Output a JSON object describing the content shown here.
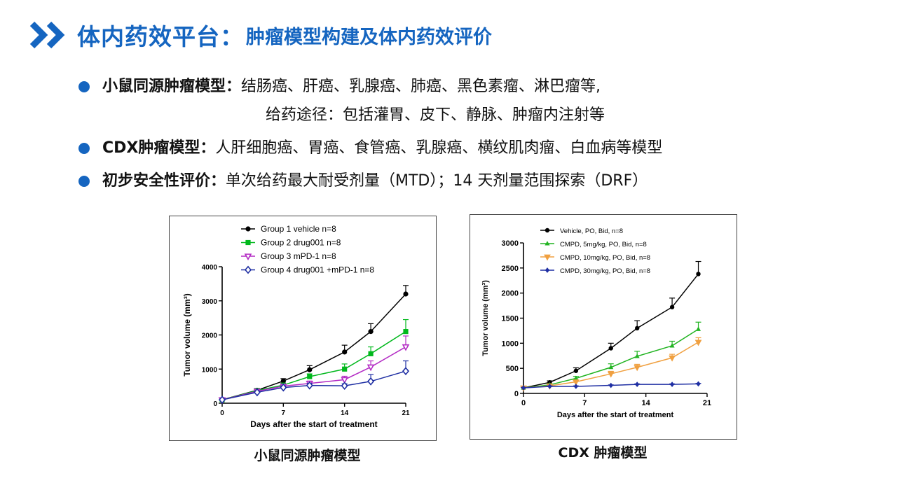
{
  "header": {
    "title_main": "体内药效平台",
    "title_sep": "：",
    "title_sub": "肿瘤模型构建及体内药效评价",
    "icon": "double-chevron-right-icon",
    "accent": "#1565c0"
  },
  "bullets": [
    {
      "label": "小鼠同源肿瘤模型：",
      "text": "结肠癌、肝癌、乳腺癌、肺癌、黑色素瘤、淋巴瘤等,",
      "continuation": "给药途径：包括灌胃、皮下、静脉、肿瘤内注射等"
    },
    {
      "label": "CDX肿瘤模型：",
      "text": "人肝细胞癌、胃癌、食管癌、乳腺癌、横纹肌肉瘤、白血病等模型"
    },
    {
      "label": "初步安全性评价：",
      "text": "单次给药最大耐受剂量（MTD）；14 天剂量范围探索（DRF）"
    }
  ],
  "captions": {
    "chart1": "小鼠同源肿瘤模型",
    "chart2": "CDX 肿瘤模型"
  },
  "chart_data": [
    {
      "type": "line",
      "title": "",
      "xlabel": "Days after the start of treatment",
      "ylabel": "Tumor volume (mm³)",
      "xlim": [
        0,
        21
      ],
      "ylim": [
        0,
        4000
      ],
      "xticks": [
        0,
        7,
        14,
        21
      ],
      "yticks": [
        0,
        1000,
        2000,
        3000,
        4000
      ],
      "legend_position": "top",
      "series": [
        {
          "name": "Group 1 vehicle n=8",
          "color": "#000000",
          "marker": "circle",
          "x": [
            0,
            4,
            7,
            10,
            14,
            17,
            21
          ],
          "y": [
            100,
            380,
            650,
            980,
            1500,
            2100,
            3200
          ],
          "err": [
            20,
            50,
            70,
            120,
            200,
            230,
            250
          ]
        },
        {
          "name": "Group 2 drug001 n=8",
          "color": "#00b81c",
          "marker": "square",
          "x": [
            0,
            4,
            7,
            10,
            14,
            17,
            21
          ],
          "y": [
            100,
            370,
            530,
            780,
            1000,
            1450,
            2100
          ],
          "err": [
            20,
            40,
            50,
            80,
            150,
            200,
            350
          ]
        },
        {
          "name": "Group 3 mPD-1 n=8",
          "color": "#b32bc4",
          "marker": "triangle-down",
          "x": [
            0,
            4,
            7,
            10,
            14,
            17,
            21
          ],
          "y": [
            100,
            350,
            500,
            580,
            690,
            1060,
            1650
          ],
          "err": [
            20,
            40,
            50,
            70,
            100,
            180,
            320
          ]
        },
        {
          "name": "Group 4 drug001 +mPD-1 n=8",
          "color": "#1f2fa3",
          "marker": "diamond-open",
          "x": [
            0,
            4,
            7,
            10,
            14,
            17,
            21
          ],
          "y": [
            100,
            320,
            460,
            520,
            510,
            640,
            940
          ],
          "err": [
            20,
            30,
            40,
            60,
            60,
            200,
            300
          ]
        }
      ]
    },
    {
      "type": "line",
      "title": "",
      "xlabel": "Days after the start of treatment",
      "ylabel": "Tumor volume (mm³)",
      "xlim": [
        0,
        21
      ],
      "ylim": [
        0,
        3000
      ],
      "xticks": [
        0,
        7,
        14,
        21
      ],
      "yticks": [
        0,
        500,
        1000,
        1500,
        2000,
        2500,
        3000
      ],
      "legend_position": "top",
      "series": [
        {
          "name": "Vehicle, PO, Bid, n=8",
          "color": "#000000",
          "marker": "circle",
          "x": [
            0,
            3,
            6,
            10,
            13,
            17,
            20
          ],
          "y": [
            110,
            220,
            450,
            900,
            1300,
            1720,
            2380
          ],
          "err": [
            15,
            30,
            60,
            100,
            150,
            180,
            250
          ]
        },
        {
          "name": "CMPD, 5mg/kg, PO, Bid, n=8",
          "color": "#22b422",
          "marker": "triangle",
          "x": [
            0,
            3,
            6,
            10,
            13,
            17,
            20
          ],
          "y": [
            110,
            170,
            300,
            520,
            740,
            950,
            1280
          ],
          "err": [
            15,
            25,
            40,
            70,
            100,
            90,
            140
          ]
        },
        {
          "name": "CMPD, 10mg/kg, PO, Bid, n=8",
          "color": "#f0a040",
          "marker": "triangle-down",
          "x": [
            0,
            3,
            6,
            10,
            13,
            17,
            20
          ],
          "y": [
            110,
            150,
            230,
            390,
            520,
            710,
            1020
          ],
          "err": [
            15,
            20,
            30,
            50,
            60,
            70,
            90
          ]
        },
        {
          "name": "CMPD, 30mg/kg, PO, Bid, n=8",
          "color": "#1f2fa3",
          "marker": "diamond",
          "x": [
            0,
            3,
            6,
            10,
            13,
            17,
            20
          ],
          "y": [
            110,
            140,
            140,
            160,
            180,
            180,
            190
          ],
          "err": [
            10,
            10,
            10,
            10,
            10,
            10,
            10
          ]
        }
      ]
    }
  ]
}
